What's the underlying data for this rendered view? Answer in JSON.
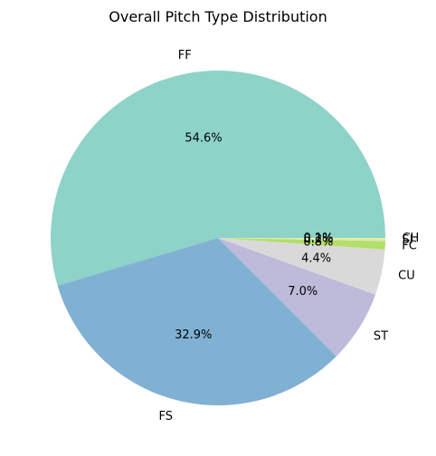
{
  "chart_data": {
    "type": "pie",
    "title": "Overall Pitch Type Distribution",
    "start_angle_deg": 0,
    "direction": "counterclockwise",
    "slices": [
      {
        "label": "FF",
        "value": 54.6,
        "pct_label": "54.6%",
        "color": "#8dd3c7"
      },
      {
        "label": "FS",
        "value": 32.9,
        "pct_label": "32.9%",
        "color": "#80b1d3"
      },
      {
        "label": "ST",
        "value": 7.0,
        "pct_label": "7.0%",
        "color": "#bebada"
      },
      {
        "label": "CU",
        "value": 4.4,
        "pct_label": "4.4%",
        "color": "#d9d9d9"
      },
      {
        "label": "FC",
        "value": 0.8,
        "pct_label": "0.8%",
        "color": "#b3de69"
      },
      {
        "label": "SI",
        "value": 0.2,
        "pct_label": "0.2%",
        "color": "#ccebc5"
      },
      {
        "label": "CH",
        "value": 0.1,
        "pct_label": "0.1%",
        "color": "#ffed6f"
      }
    ]
  }
}
